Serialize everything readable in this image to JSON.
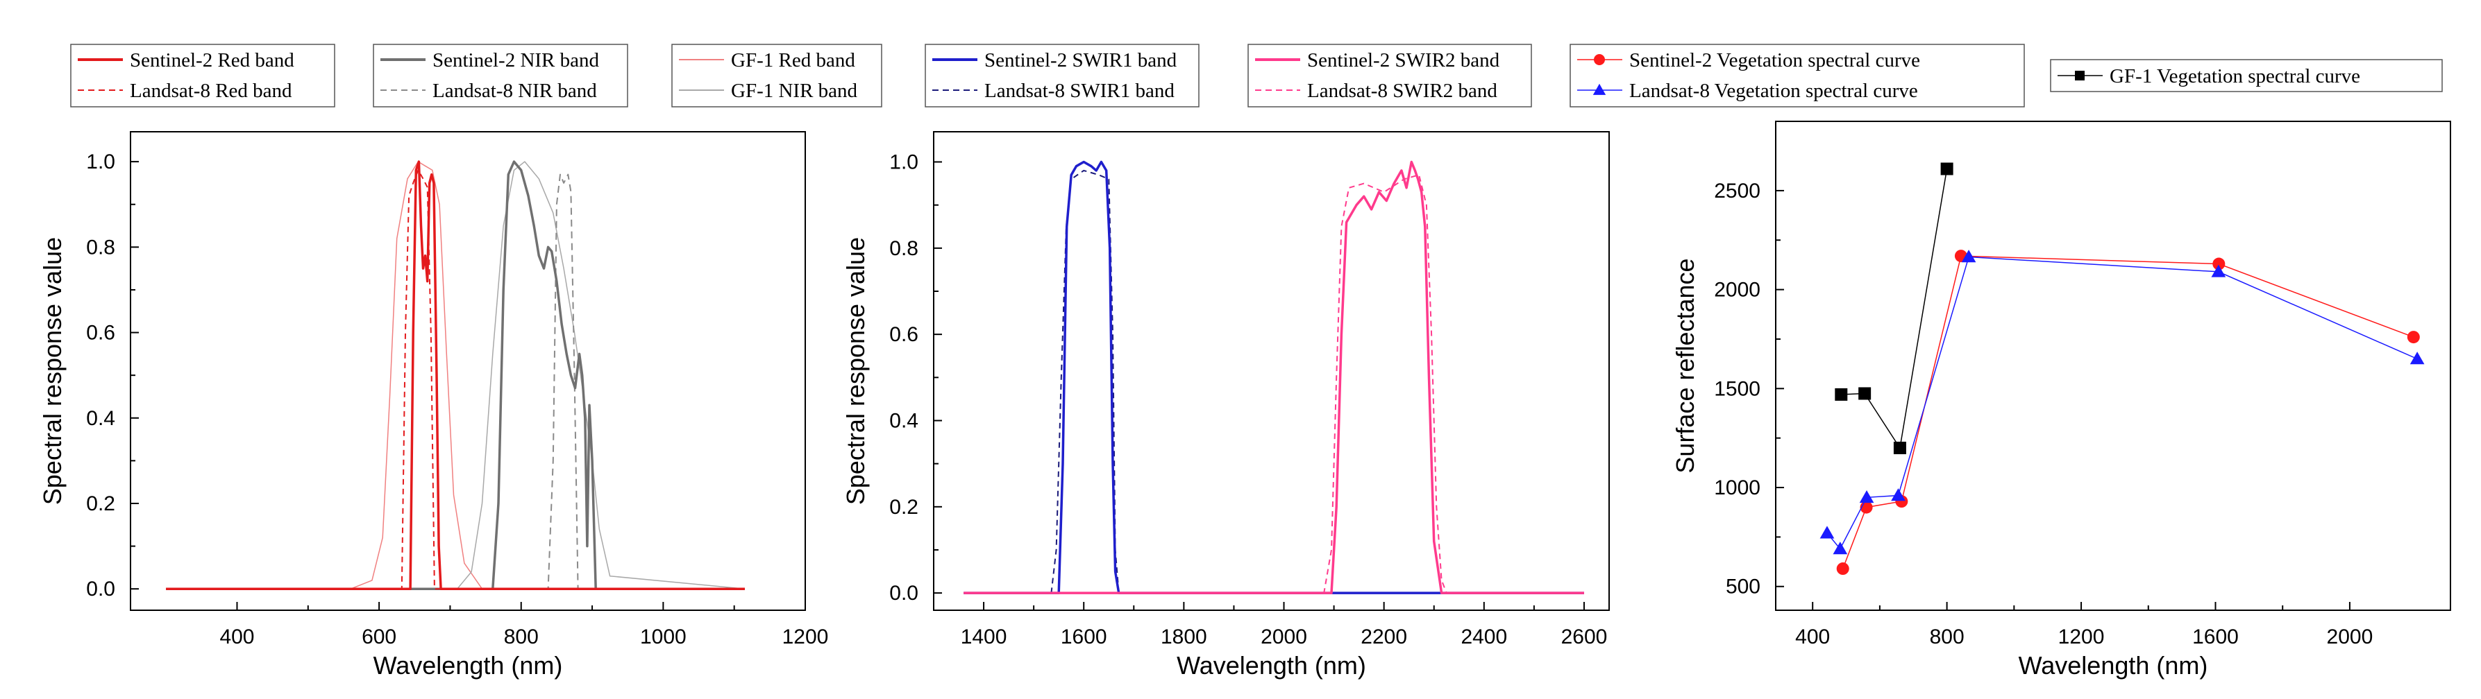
{
  "legends": {
    "panel1": [
      {
        "label": "Sentinel-2 Red band",
        "color": "#e31a1c",
        "dash": "solid",
        "bold": true
      },
      {
        "label": "Landsat-8 Red band",
        "color": "#e31a1c",
        "dash": "dash",
        "bold": false
      },
      {
        "label": "Sentinel-2 NIR band",
        "color": "#707070",
        "dash": "solid",
        "bold": true
      },
      {
        "label": "Landsat-8 NIR band",
        "color": "#8a8a8a",
        "dash": "dash",
        "bold": false
      },
      {
        "label": "GF-1 Red band",
        "color": "#f08080",
        "dash": "solid",
        "bold": false
      },
      {
        "label": "GF-1 NIR band",
        "color": "#a8a8a8",
        "dash": "solid",
        "bold": false
      }
    ],
    "panel2": [
      {
        "label": "Sentinel-2 SWIR1 band",
        "color": "#1f1fcc",
        "dash": "solid",
        "bold": true
      },
      {
        "label": "Landsat-8 SWIR1 band",
        "color": "#1a1a7a",
        "dash": "dash",
        "bold": false
      },
      {
        "label": "Sentinel-2 SWIR2 band",
        "color": "#ff3a8c",
        "dash": "solid",
        "bold": true
      },
      {
        "label": "Landsat-8 SWIR2 band",
        "color": "#ff3a8c",
        "dash": "dash",
        "bold": false
      }
    ],
    "panel3": [
      {
        "label": "Sentinel-2 Vegetation spectral curve",
        "color": "#ff1a1a",
        "marker": "circle"
      },
      {
        "label": "Landsat-8 Vegetation spectral curve",
        "color": "#1a1aff",
        "marker": "triangle"
      },
      {
        "label": "GF-1 Vegetation spectral curve",
        "color": "#000000",
        "marker": "square"
      }
    ]
  },
  "chart_data": [
    {
      "type": "line",
      "title": "",
      "xlabel": "Wavelength (nm)",
      "ylabel": "Spectral response value",
      "xlim": [
        250,
        1200
      ],
      "ylim": [
        -0.05,
        1.07
      ],
      "xticks": [
        400,
        600,
        800,
        1000,
        1200
      ],
      "yticks": [
        0.0,
        0.2,
        0.4,
        0.6,
        0.8,
        1.0
      ],
      "xtick_labels": [
        "400",
        "600",
        "800",
        "1000",
        "1200"
      ],
      "ytick_labels": [
        "0.0",
        "0.2",
        "0.4",
        "0.6",
        "0.8",
        "1.0"
      ],
      "series": [
        {
          "name": "GF-1 Red band",
          "color": "#f08080",
          "width": 1.5,
          "dash": "",
          "x": [
            300,
            560,
            590,
            605,
            615,
            625,
            640,
            655,
            665,
            675,
            685,
            695,
            705,
            720,
            745,
            1115
          ],
          "y": [
            0,
            0,
            0.02,
            0.12,
            0.45,
            0.82,
            0.96,
            1.0,
            0.99,
            0.98,
            0.9,
            0.55,
            0.22,
            0.06,
            0,
            0
          ]
        },
        {
          "name": "GF-1 NIR band",
          "color": "#a8a8a8",
          "width": 1.5,
          "dash": "",
          "x": [
            300,
            710,
            730,
            745,
            760,
            775,
            790,
            805,
            825,
            845,
            860,
            875,
            888,
            900,
            910,
            925,
            1115
          ],
          "y": [
            0,
            0,
            0.04,
            0.2,
            0.55,
            0.85,
            0.98,
            1.0,
            0.96,
            0.88,
            0.75,
            0.6,
            0.45,
            0.3,
            0.14,
            0.03,
            0
          ]
        },
        {
          "name": "Landsat-8 NIR band",
          "color": "#8a8a8a",
          "width": 2,
          "dash": "10 7",
          "x": [
            300,
            838,
            845,
            850,
            855,
            860,
            866,
            870,
            875,
            880,
            1115
          ],
          "y": [
            0,
            0,
            0.3,
            0.9,
            0.97,
            0.95,
            0.97,
            0.93,
            0.5,
            0,
            0
          ]
        },
        {
          "name": "Sentinel-2 NIR band",
          "color": "#707070",
          "width": 3.5,
          "dash": "",
          "x": [
            300,
            760,
            768,
            775,
            782,
            790,
            800,
            810,
            818,
            825,
            832,
            838,
            843,
            850,
            857,
            864,
            870,
            876,
            882,
            886,
            890,
            893,
            896,
            900,
            905,
            1115
          ],
          "y": [
            0,
            0,
            0.2,
            0.7,
            0.97,
            1.0,
            0.98,
            0.92,
            0.85,
            0.78,
            0.75,
            0.8,
            0.79,
            0.72,
            0.62,
            0.55,
            0.5,
            0.47,
            0.55,
            0.5,
            0.4,
            0.1,
            0.43,
            0.3,
            0,
            0
          ]
        },
        {
          "name": "Landsat-8 Red band",
          "color": "#e31a1c",
          "width": 2,
          "dash": "8 6",
          "x": [
            300,
            632,
            637,
            642,
            648,
            655,
            662,
            668,
            673,
            678,
            1115
          ],
          "y": [
            0,
            0,
            0.6,
            0.92,
            0.95,
            0.98,
            0.96,
            0.94,
            0.6,
            0,
            0
          ]
        },
        {
          "name": "Sentinel-2 Red band",
          "color": "#e31a1c",
          "width": 3.5,
          "dash": "",
          "x": [
            300,
            644,
            648,
            652,
            656,
            659,
            662,
            665,
            668,
            671,
            674,
            677,
            681,
            684,
            687,
            1115
          ],
          "y": [
            0,
            0,
            0.6,
            0.98,
            1.0,
            0.85,
            0.75,
            0.78,
            0.72,
            0.95,
            0.97,
            0.95,
            0.5,
            0.1,
            0,
            0
          ]
        }
      ]
    },
    {
      "type": "line",
      "title": "",
      "xlabel": "Wavelength (nm)",
      "ylabel": "Spectral response value",
      "xlim": [
        1300,
        2650
      ],
      "ylim": [
        -0.04,
        1.07
      ],
      "xticks": [
        1400,
        1600,
        1800,
        2000,
        2200,
        2400,
        2600
      ],
      "yticks": [
        0.0,
        0.2,
        0.4,
        0.6,
        0.8,
        1.0
      ],
      "xtick_labels": [
        "1400",
        "1600",
        "1800",
        "2000",
        "2200",
        "2400",
        "2600"
      ],
      "ytick_labels": [
        "0.0",
        "0.2",
        "0.4",
        "0.6",
        "0.8",
        "1.0"
      ],
      "series": [
        {
          "name": "Landsat-8 SWIR1 band",
          "color": "#1a1a7a",
          "width": 2,
          "dash": "8 6",
          "x": [
            1360,
            1535,
            1545,
            1555,
            1565,
            1575,
            1600,
            1630,
            1650,
            1658,
            1663,
            1670,
            2600
          ],
          "y": [
            0,
            0,
            0.1,
            0.5,
            0.85,
            0.96,
            0.98,
            0.97,
            0.96,
            0.6,
            0.1,
            0,
            0
          ]
        },
        {
          "name": "Sentinel-2 SWIR1 band",
          "color": "#1f1fcc",
          "width": 3.5,
          "dash": "",
          "x": [
            1360,
            1550,
            1558,
            1566,
            1575,
            1585,
            1600,
            1615,
            1625,
            1635,
            1645,
            1652,
            1658,
            1663,
            1670,
            2600
          ],
          "y": [
            0,
            0,
            0.3,
            0.85,
            0.97,
            0.99,
            1.0,
            0.99,
            0.98,
            1.0,
            0.98,
            0.8,
            0.3,
            0.05,
            0,
            0
          ]
        },
        {
          "name": "Landsat-8 SWIR2 band",
          "color": "#ff3a8c",
          "width": 2,
          "dash": "8 6",
          "x": [
            1360,
            2080,
            2095,
            2105,
            2115,
            2130,
            2160,
            2200,
            2240,
            2270,
            2285,
            2295,
            2305,
            2315,
            2325,
            2600
          ],
          "y": [
            0,
            0,
            0.1,
            0.5,
            0.85,
            0.94,
            0.95,
            0.93,
            0.96,
            0.97,
            0.9,
            0.6,
            0.2,
            0.03,
            0,
            0
          ]
        },
        {
          "name": "Sentinel-2 SWIR2 band",
          "color": "#ff3a8c",
          "width": 3.5,
          "dash": "",
          "x": [
            1360,
            2095,
            2105,
            2115,
            2125,
            2135,
            2145,
            2160,
            2175,
            2190,
            2205,
            2220,
            2235,
            2245,
            2255,
            2262,
            2268,
            2275,
            2282,
            2290,
            2300,
            2315,
            2600
          ],
          "y": [
            0,
            0,
            0.2,
            0.6,
            0.86,
            0.88,
            0.9,
            0.92,
            0.89,
            0.93,
            0.91,
            0.95,
            0.98,
            0.94,
            1.0,
            0.98,
            0.96,
            0.93,
            0.85,
            0.5,
            0.12,
            0,
            0
          ]
        }
      ]
    },
    {
      "type": "scatter",
      "title": "",
      "xlabel": "Wavelength (nm)",
      "ylabel": "Surface reflectance",
      "xlim": [
        290,
        2300
      ],
      "ylim": [
        380,
        2850
      ],
      "xticks": [
        400,
        800,
        1200,
        1600,
        2000
      ],
      "yticks": [
        500,
        1000,
        1500,
        2000,
        2500
      ],
      "xtick_labels": [
        "400",
        "800",
        "1200",
        "1600",
        "2000"
      ],
      "ytick_labels": [
        "500",
        "1000",
        "1500",
        "2000",
        "2500"
      ],
      "series": [
        {
          "name": "Sentinel-2 Vegetation spectral curve",
          "color": "#ff1a1a",
          "marker": "circle",
          "x": [
            490,
            560,
            665,
            842,
            1610,
            2190
          ],
          "y": [
            590,
            900,
            930,
            2170,
            2130,
            1760
          ]
        },
        {
          "name": "Landsat-8 Vegetation spectral curve",
          "color": "#1a1aff",
          "marker": "triangle",
          "x": [
            443,
            482,
            561,
            655,
            865,
            1609,
            2201
          ],
          "y": [
            770,
            690,
            950,
            960,
            2165,
            2090,
            1650
          ]
        },
        {
          "name": "GF-1 Vegetation spectral curve",
          "color": "#000000",
          "marker": "square",
          "x": [
            485,
            555,
            660,
            800
          ],
          "y": [
            1470,
            1475,
            1200,
            2610
          ]
        }
      ]
    }
  ]
}
